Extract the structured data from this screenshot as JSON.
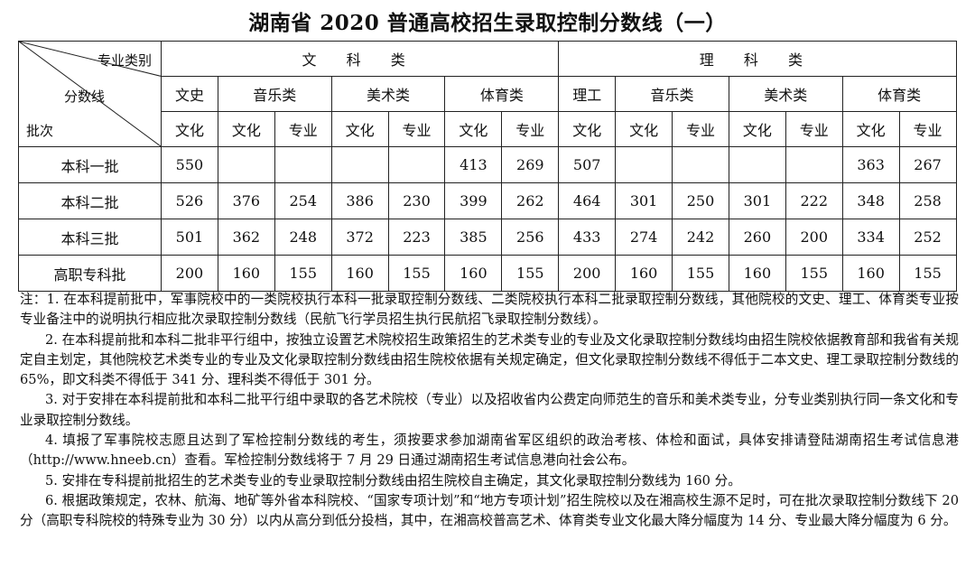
{
  "title": "湖南省 2020 普通高校招生录取控制分数线（一）",
  "table": {
    "corner": {
      "top": "专业类别",
      "middle": "分数线",
      "bottom": "批次"
    },
    "groups": [
      "文 科 类",
      "理 科 类"
    ],
    "subgroups": [
      "文史",
      "音乐类",
      "美术类",
      "体育类",
      "理工",
      "音乐类",
      "美术类",
      "体育类"
    ],
    "columns": [
      "文化",
      "文化",
      "专业",
      "文化",
      "专业",
      "文化",
      "专业",
      "文化",
      "文化",
      "专业",
      "文化",
      "专业",
      "文化",
      "专业"
    ],
    "rows": [
      {
        "batch": "本科一批",
        "values": [
          "550",
          "",
          "",
          "",
          "",
          "413",
          "269",
          "507",
          "",
          "",
          "",
          "",
          "363",
          "267"
        ]
      },
      {
        "batch": "本科二批",
        "values": [
          "526",
          "376",
          "254",
          "386",
          "230",
          "399",
          "262",
          "464",
          "301",
          "250",
          "301",
          "222",
          "348",
          "258"
        ]
      },
      {
        "batch": "本科三批",
        "values": [
          "501",
          "362",
          "248",
          "372",
          "223",
          "385",
          "256",
          "433",
          "274",
          "242",
          "260",
          "200",
          "334",
          "252"
        ]
      },
      {
        "batch": "高职专科批",
        "values": [
          "200",
          "160",
          "155",
          "160",
          "155",
          "160",
          "155",
          "200",
          "160",
          "155",
          "160",
          "155",
          "160",
          "155"
        ]
      }
    ]
  },
  "notes": [
    "注：1. 在本科提前批中，军事院校中的一类院校执行本科一批录取控制分数线、二类院校执行本科二批录取控制分数线，其他院校的文史、理工、体育类专业按专业备注中的说明执行相应批次录取控制分数线（民航飞行学员招生执行民航招飞录取控制分数线）。",
    "2. 在本科提前批和本科二批非平行组中，按独立设置艺术院校招生政策招生的艺术类专业的专业及文化录取控制分数线均由招生院校依据教育部和我省有关规定自主划定，其他院校艺术类专业的专业及文化录取控制分数线由招生院校依据有关规定确定，但文化录取控制分数线不得低于二本文史、理工录取控制分数线的 65%，即文科类不得低于 341 分、理科类不得低于 301 分。",
    "3. 对于安排在本科提前批和本科二批平行组中录取的各艺术院校（专业）以及招收省内公费定向师范生的音乐和美术类专业，分专业类别执行同一条文化和专业录取控制分数线。",
    "4. 填报了军事院校志愿且达到了军检控制分数线的考生，须按要求参加湖南省军区组织的政治考核、体检和面试，具体安排请登陆湖南招生考试信息港（http://www.hneeb.cn）查看。军检控制分数线将于 7 月 29 日通过湖南招生考试信息港向社会公布。",
    "5. 安排在专科提前批招生的艺术类专业的专业录取控制分数线由招生院校自主确定，其文化录取控制分数线为 160 分。",
    "6. 根据政策规定，农林、航海、地矿等外省本科院校、“国家专项计划”和“地方专项计划”招生院校以及在湘高校生源不足时，可在批次录取控制分数线下 20 分（高职专科院校的特殊专业为 30 分）以内从高分到低分投档，其中，在湘高校普高艺术、体育类专业文化最大降分幅度为 14 分、专业最大降分幅度为 6 分。"
  ]
}
